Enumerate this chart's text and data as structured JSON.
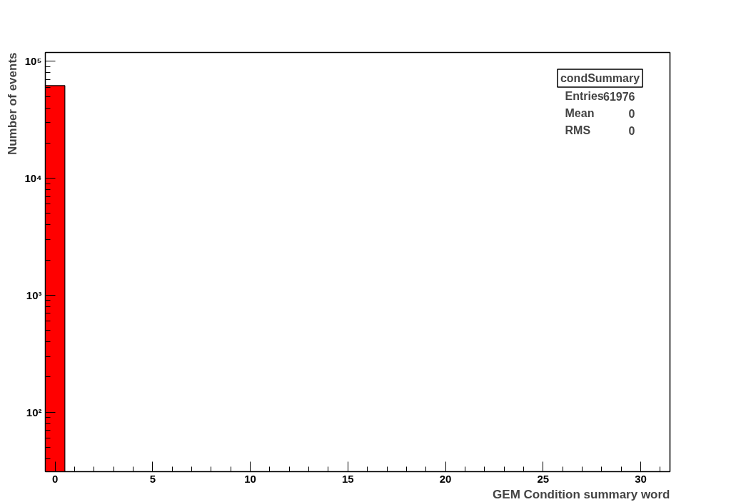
{
  "chart_data": {
    "type": "histogram",
    "xlabel": "GEM Condition summary word",
    "ylabel": "Number of events",
    "bins": [
      -0.5,
      0.5,
      1.5,
      2.5,
      3.5,
      4.5,
      5.5,
      6.5,
      7.5,
      8.5,
      9.5,
      10.5,
      11.5,
      12.5,
      13.5,
      14.5,
      15.5,
      16.5,
      17.5,
      18.5,
      19.5,
      20.5,
      21.5,
      22.5,
      23.5,
      24.5,
      25.5,
      26.5,
      27.5,
      28.5,
      29.5,
      30.5,
      31.5
    ],
    "values": [
      61976,
      null,
      null,
      null,
      null,
      null,
      null,
      null,
      null,
      null,
      null,
      null,
      null,
      null,
      null,
      null,
      null,
      null,
      null,
      null,
      null,
      null,
      null,
      null,
      null,
      null,
      null,
      null,
      null,
      null,
      null,
      null
    ],
    "color": "#ff0000",
    "log": "y",
    "grid": false,
    "xlim": [
      -0.5,
      31.5
    ],
    "xticks": [
      0,
      5,
      10,
      15,
      20,
      25,
      30
    ],
    "ylim": [
      31,
      119000
    ],
    "yticks": [
      {
        "value": 100,
        "label": "10²"
      },
      {
        "value": 1000,
        "label": "10³"
      },
      {
        "value": 10000,
        "label": "10⁴"
      },
      {
        "value": 100000,
        "label": "10⁵"
      }
    ],
    "annotations": [
      "condSummary",
      "Entries",
      "61976",
      "Mean",
      "0",
      "RMS",
      "0"
    ]
  }
}
